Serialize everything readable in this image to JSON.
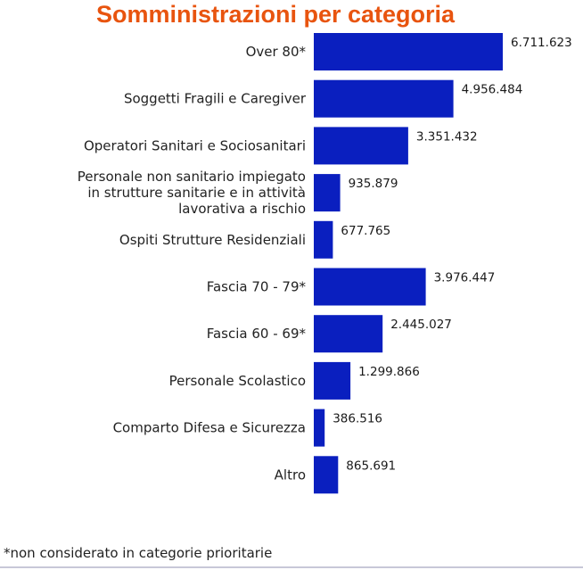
{
  "chart_data": {
    "type": "bar",
    "orientation": "horizontal",
    "title": "Somministrazioni per categoria",
    "xlabel": "",
    "ylabel": "",
    "grid": false,
    "legend": "none",
    "bar_color": "#0a1fbf",
    "title_color": "#e8540f",
    "categories": [
      [
        "Over 80*"
      ],
      [
        "Soggetti Fragili e Caregiver"
      ],
      [
        "Operatori Sanitari e Sociosanitari"
      ],
      [
        "Personale non sanitario impiegato",
        "in strutture sanitarie e in attività",
        "lavorativa a rischio"
      ],
      [
        "Ospiti Strutture Residenziali"
      ],
      [
        "Fascia 70 - 79*"
      ],
      [
        "Fascia 60 - 69*"
      ],
      [
        "Personale Scolastico"
      ],
      [
        "Comparto Difesa e Sicurezza"
      ],
      [
        "Altro"
      ]
    ],
    "values": [
      6711623,
      4956484,
      3351432,
      935879,
      677765,
      3976447,
      2445027,
      1299866,
      386516,
      865691
    ],
    "value_labels": [
      "6.711.623",
      "4.956.484",
      "3.351.432",
      "935.879",
      "677.765",
      "3.976.447",
      "2.445.027",
      "1.299.866",
      "386.516",
      "865.691"
    ]
  },
  "footnote": "*non considerato in categorie prioritarie"
}
